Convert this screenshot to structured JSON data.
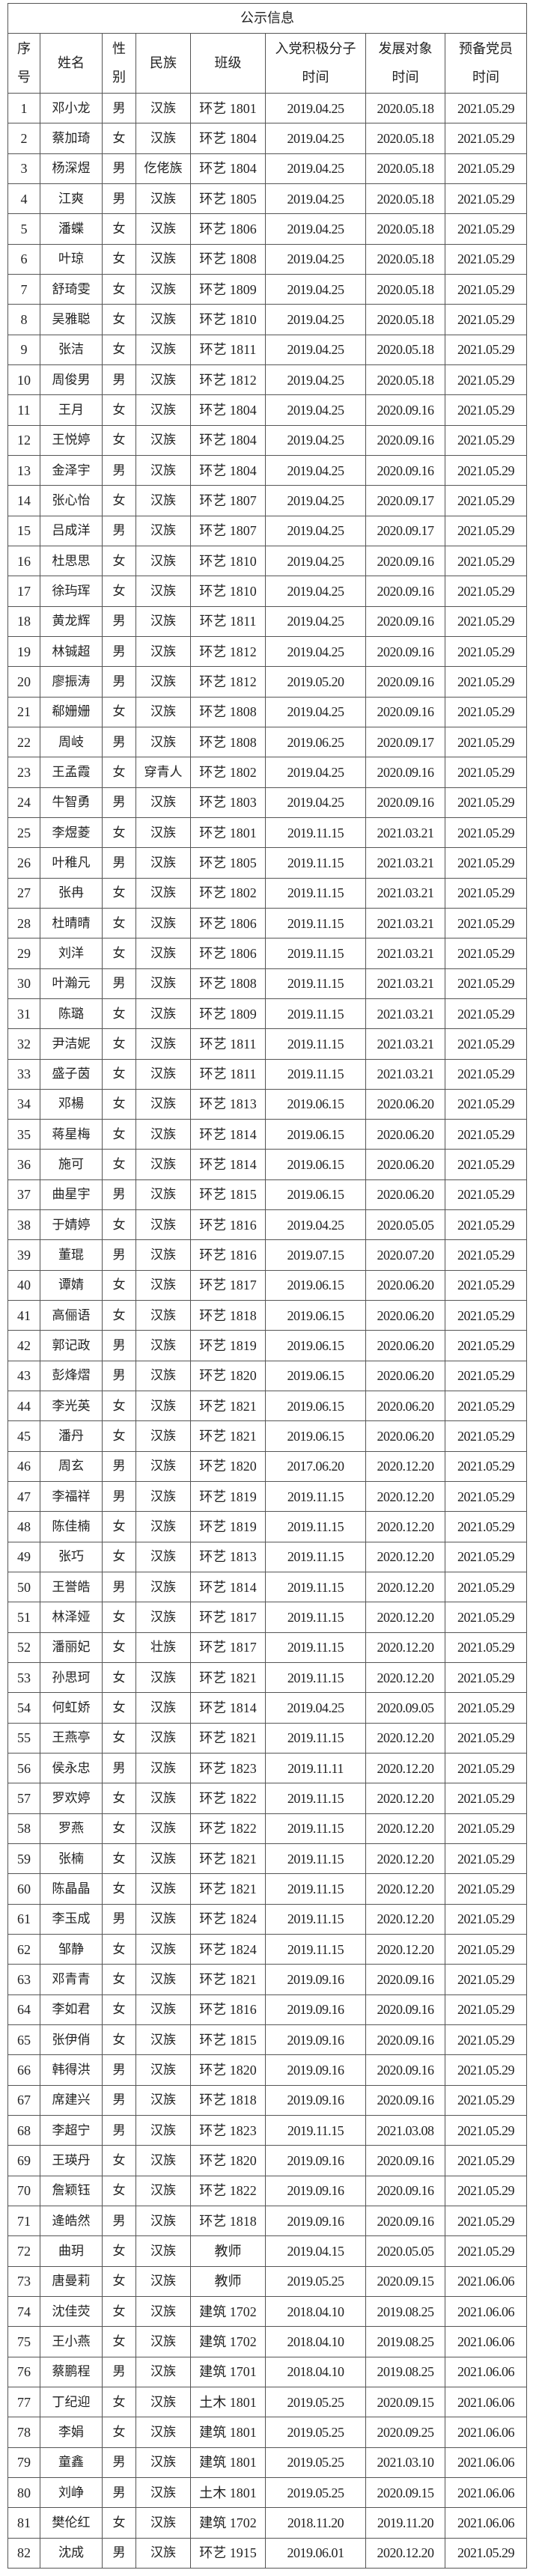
{
  "title": "公示信息",
  "headers": [
    "序\n号",
    "姓名",
    "性\n别",
    "民族",
    "班级",
    "入党积极分子\n时间",
    "发展对象\n时间",
    "预备党员\n时间"
  ],
  "rows": [
    [
      "1",
      "邓小龙",
      "男",
      "汉族",
      "环艺 1801",
      "2019.04.25",
      "2020.05.18",
      "2021.05.29"
    ],
    [
      "2",
      "蔡加琦",
      "女",
      "汉族",
      "环艺 1804",
      "2019.04.25",
      "2020.05.18",
      "2021.05.29"
    ],
    [
      "3",
      "杨深煜",
      "男",
      "仡佬族",
      "环艺 1804",
      "2019.04.25",
      "2020.05.18",
      "2021.05.29"
    ],
    [
      "4",
      "江爽",
      "男",
      "汉族",
      "环艺 1805",
      "2019.04.25",
      "2020.05.18",
      "2021.05.29"
    ],
    [
      "5",
      "潘蝶",
      "女",
      "汉族",
      "环艺 1806",
      "2019.04.25",
      "2020.05.18",
      "2021.05.29"
    ],
    [
      "6",
      "叶琼",
      "女",
      "汉族",
      "环艺 1808",
      "2019.04.25",
      "2020.05.18",
      "2021.05.29"
    ],
    [
      "7",
      "舒琦雯",
      "女",
      "汉族",
      "环艺 1809",
      "2019.04.25",
      "2020.05.18",
      "2021.05.29"
    ],
    [
      "8",
      "吴雅聪",
      "女",
      "汉族",
      "环艺 1810",
      "2019.04.25",
      "2020.05.18",
      "2021.05.29"
    ],
    [
      "9",
      "张洁",
      "女",
      "汉族",
      "环艺 1811",
      "2019.04.25",
      "2020.05.18",
      "2021.05.29"
    ],
    [
      "10",
      "周俊男",
      "男",
      "汉族",
      "环艺 1812",
      "2019.04.25",
      "2020.05.18",
      "2021.05.29"
    ],
    [
      "11",
      "王月",
      "女",
      "汉族",
      "环艺 1804",
      "2019.04.25",
      "2020.09.16",
      "2021.05.29"
    ],
    [
      "12",
      "王悦婷",
      "女",
      "汉族",
      "环艺 1804",
      "2019.04.25",
      "2020.09.16",
      "2021.05.29"
    ],
    [
      "13",
      "金泽宇",
      "男",
      "汉族",
      "环艺 1804",
      "2019.04.25",
      "2020.09.16",
      "2021.05.29"
    ],
    [
      "14",
      "张心怡",
      "女",
      "汉族",
      "环艺 1807",
      "2019.04.25",
      "2020.09.17",
      "2021.05.29"
    ],
    [
      "15",
      "吕成洋",
      "男",
      "汉族",
      "环艺 1807",
      "2019.04.25",
      "2020.09.17",
      "2021.05.29"
    ],
    [
      "16",
      "杜思思",
      "女",
      "汉族",
      "环艺 1810",
      "2019.04.25",
      "2020.09.16",
      "2021.05.29"
    ],
    [
      "17",
      "徐玙珲",
      "女",
      "汉族",
      "环艺 1810",
      "2019.04.25",
      "2020.09.16",
      "2021.05.29"
    ],
    [
      "18",
      "黄龙辉",
      "男",
      "汉族",
      "环艺 1811",
      "2019.04.25",
      "2020.09.16",
      "2021.05.29"
    ],
    [
      "19",
      "林铖超",
      "男",
      "汉族",
      "环艺 1812",
      "2019.04.25",
      "2020.09.16",
      "2021.05.29"
    ],
    [
      "20",
      "廖振涛",
      "男",
      "汉族",
      "环艺 1812",
      "2019.05.20",
      "2020.09.16",
      "2021.05.29"
    ],
    [
      "21",
      "郗姗姗",
      "女",
      "汉族",
      "环艺 1808",
      "2019.04.25",
      "2020.09.16",
      "2021.05.29"
    ],
    [
      "22",
      "周岐",
      "男",
      "汉族",
      "环艺 1808",
      "2019.06.25",
      "2020.09.17",
      "2021.05.29"
    ],
    [
      "23",
      "王孟霞",
      "女",
      "穿青人",
      "环艺 1802",
      "2019.04.25",
      "2020.09.16",
      "2021.05.29"
    ],
    [
      "24",
      "牛智勇",
      "男",
      "汉族",
      "环艺 1803",
      "2019.04.25",
      "2020.09.16",
      "2021.05.29"
    ],
    [
      "25",
      "李煜菱",
      "女",
      "汉族",
      "环艺 1801",
      "2019.11.15",
      "2021.03.21",
      "2021.05.29"
    ],
    [
      "26",
      "叶稚凡",
      "男",
      "汉族",
      "环艺 1805",
      "2019.11.15",
      "2021.03.21",
      "2021.05.29"
    ],
    [
      "27",
      "张冉",
      "女",
      "汉族",
      "环艺 1802",
      "2019.11.15",
      "2021.03.21",
      "2021.05.29"
    ],
    [
      "28",
      "杜晴晴",
      "女",
      "汉族",
      "环艺 1806",
      "2019.11.15",
      "2021.03.21",
      "2021.05.29"
    ],
    [
      "29",
      "刘洋",
      "女",
      "汉族",
      "环艺 1806",
      "2019.11.15",
      "2021.03.21",
      "2021.05.29"
    ],
    [
      "30",
      "叶瀚元",
      "男",
      "汉族",
      "环艺 1808",
      "2019.11.15",
      "2021.03.21",
      "2021.05.29"
    ],
    [
      "31",
      "陈璐",
      "女",
      "汉族",
      "环艺 1809",
      "2019.11.15",
      "2021.03.21",
      "2021.05.29"
    ],
    [
      "32",
      "尹洁妮",
      "女",
      "汉族",
      "环艺 1811",
      "2019.11.15",
      "2021.03.21",
      "2021.05.29"
    ],
    [
      "33",
      "盛子茵",
      "女",
      "汉族",
      "环艺 1811",
      "2019.11.15",
      "2021.03.21",
      "2021.05.29"
    ],
    [
      "34",
      "邓楊",
      "女",
      "汉族",
      "环艺 1813",
      "2019.06.15",
      "2020.06.20",
      "2021.05.29"
    ],
    [
      "35",
      "蒋星梅",
      "女",
      "汉族",
      "环艺 1814",
      "2019.06.15",
      "2020.06.20",
      "2021.05.29"
    ],
    [
      "36",
      "施可",
      "女",
      "汉族",
      "环艺 1814",
      "2019.06.15",
      "2020.06.20",
      "2021.05.29"
    ],
    [
      "37",
      "曲星宇",
      "男",
      "汉族",
      "环艺 1815",
      "2019.06.15",
      "2020.06.20",
      "2021.05.29"
    ],
    [
      "38",
      "于婧婷",
      "女",
      "汉族",
      "环艺 1816",
      "2019.04.25",
      "2020.05.05",
      "2021.05.29"
    ],
    [
      "39",
      "董琨",
      "男",
      "汉族",
      "环艺 1816",
      "2019.07.15",
      "2020.07.20",
      "2021.05.29"
    ],
    [
      "40",
      "谭婧",
      "女",
      "汉族",
      "环艺 1817",
      "2019.06.15",
      "2020.06.20",
      "2021.05.29"
    ],
    [
      "41",
      "高俪语",
      "女",
      "汉族",
      "环艺 1818",
      "2019.06.15",
      "2020.06.20",
      "2021.05.29"
    ],
    [
      "42",
      "郭记政",
      "男",
      "汉族",
      "环艺 1819",
      "2019.06.15",
      "2020.06.20",
      "2021.05.29"
    ],
    [
      "43",
      "彭烽熠",
      "男",
      "汉族",
      "环艺 1820",
      "2019.06.15",
      "2020.06.20",
      "2021.05.29"
    ],
    [
      "44",
      "李光英",
      "女",
      "汉族",
      "环艺 1821",
      "2019.06.15",
      "2020.06.20",
      "2021.05.29"
    ],
    [
      "45",
      "潘丹",
      "女",
      "汉族",
      "环艺 1821",
      "2019.06.15",
      "2020.06.20",
      "2021.05.29"
    ],
    [
      "46",
      "周玄",
      "男",
      "汉族",
      "环艺 1820",
      "2017.06.20",
      "2020.12.20",
      "2021.05.29"
    ],
    [
      "47",
      "李福祥",
      "男",
      "汉族",
      "环艺 1819",
      "2019.11.15",
      "2020.12.20",
      "2021.05.29"
    ],
    [
      "48",
      "陈佳楠",
      "女",
      "汉族",
      "环艺 1819",
      "2019.11.15",
      "2020.12.20",
      "2021.05.29"
    ],
    [
      "49",
      "张巧",
      "女",
      "汉族",
      "环艺 1813",
      "2019.11.15",
      "2020.12.20",
      "2021.05.29"
    ],
    [
      "50",
      "王誉皓",
      "男",
      "汉族",
      "环艺 1814",
      "2019.11.15",
      "2020.12.20",
      "2021.05.29"
    ],
    [
      "51",
      "林泽娅",
      "女",
      "汉族",
      "环艺 1817",
      "2019.11.15",
      "2020.12.20",
      "2021.05.29"
    ],
    [
      "52",
      "潘丽妃",
      "女",
      "壮族",
      "环艺 1817",
      "2019.11.15",
      "2020.12.20",
      "2021.05.29"
    ],
    [
      "53",
      "孙思珂",
      "女",
      "汉族",
      "环艺 1821",
      "2019.11.15",
      "2020.12.20",
      "2021.05.29"
    ],
    [
      "54",
      "何虹娇",
      "女",
      "汉族",
      "环艺 1814",
      "2019.04.25",
      "2020.09.05",
      "2021.05.29"
    ],
    [
      "55",
      "王燕亭",
      "女",
      "汉族",
      "环艺 1821",
      "2019.11.15",
      "2020.12.20",
      "2021.05.29"
    ],
    [
      "56",
      "侯永忠",
      "男",
      "汉族",
      "环艺 1823",
      "2019.11.11",
      "2020.12.20",
      "2021.05.29"
    ],
    [
      "57",
      "罗欢婷",
      "女",
      "汉族",
      "环艺 1822",
      "2019.11.15",
      "2020.12.20",
      "2021.05.29"
    ],
    [
      "58",
      "罗燕",
      "女",
      "汉族",
      "环艺 1822",
      "2019.11.15",
      "2020.12.20",
      "2021.05.29"
    ],
    [
      "59",
      "张楠",
      "女",
      "汉族",
      "环艺 1821",
      "2019.11.15",
      "2020.12.20",
      "2021.05.29"
    ],
    [
      "60",
      "陈晶晶",
      "女",
      "汉族",
      "环艺 1821",
      "2019.11.15",
      "2020.12.20",
      "2021.05.29"
    ],
    [
      "61",
      "李玉成",
      "男",
      "汉族",
      "环艺 1824",
      "2019.11.15",
      "2020.12.20",
      "2021.05.29"
    ],
    [
      "62",
      "邹静",
      "女",
      "汉族",
      "环艺 1824",
      "2019.11.15",
      "2020.12.20",
      "2021.05.29"
    ],
    [
      "63",
      "邓青青",
      "女",
      "汉族",
      "环艺 1821",
      "2019.09.16",
      "2020.09.16",
      "2021.05.29"
    ],
    [
      "64",
      "李如君",
      "女",
      "汉族",
      "环艺 1816",
      "2019.09.16",
      "2020.09.16",
      "2021.05.29"
    ],
    [
      "65",
      "张伊俏",
      "女",
      "汉族",
      "环艺 1815",
      "2019.09.16",
      "2020.09.16",
      "2021.05.29"
    ],
    [
      "66",
      "韩得洪",
      "男",
      "汉族",
      "环艺 1820",
      "2019.09.16",
      "2020.09.16",
      "2021.05.29"
    ],
    [
      "67",
      "席建兴",
      "男",
      "汉族",
      "环艺 1818",
      "2019.09.16",
      "2020.09.16",
      "2021.05.29"
    ],
    [
      "68",
      "李超宁",
      "男",
      "汉族",
      "环艺 1823",
      "2019.11.15",
      "2021.03.08",
      "2021.05.29"
    ],
    [
      "69",
      "王瑛丹",
      "女",
      "汉族",
      "环艺 1820",
      "2019.09.16",
      "2020.09.16",
      "2021.05.29"
    ],
    [
      "70",
      "詹颖钰",
      "女",
      "汉族",
      "环艺 1822",
      "2019.09.16",
      "2020.09.16",
      "2021.05.29"
    ],
    [
      "71",
      "逄皓然",
      "男",
      "汉族",
      "环艺 1818",
      "2019.09.16",
      "2020.09.16",
      "2021.05.29"
    ],
    [
      "72",
      "曲玥",
      "女",
      "汉族",
      "教师",
      "2019.04.15",
      "2020.05.05",
      "2021.05.29"
    ],
    [
      "73",
      "唐曼莉",
      "女",
      "汉族",
      "教师",
      "2019.05.25",
      "2020.09.15",
      "2021.06.06"
    ],
    [
      "74",
      "沈佳荧",
      "女",
      "汉族",
      "建筑 1702",
      "2018.04.10",
      "2019.08.25",
      "2021.06.06"
    ],
    [
      "75",
      "王小燕",
      "女",
      "汉族",
      "建筑 1702",
      "2018.04.10",
      "2019.08.25",
      "2021.06.06"
    ],
    [
      "76",
      "蔡鹏程",
      "男",
      "汉族",
      "建筑 1701",
      "2018.04.10",
      "2019.08.25",
      "2021.06.06"
    ],
    [
      "77",
      "丁纪迎",
      "女",
      "汉族",
      "土木 1801",
      "2019.05.25",
      "2020.09.15",
      "2021.06.06"
    ],
    [
      "78",
      "李娟",
      "女",
      "汉族",
      "建筑 1801",
      "2019.05.25",
      "2020.09.25",
      "2021.06.06"
    ],
    [
      "79",
      "童鑫",
      "男",
      "汉族",
      "建筑 1801",
      "2019.05.25",
      "2021.03.10",
      "2021.06.06"
    ],
    [
      "80",
      "刘峥",
      "男",
      "汉族",
      "土木 1801",
      "2019.05.25",
      "2020.09.15",
      "2021.06.06"
    ],
    [
      "81",
      "樊伦红",
      "女",
      "汉族",
      "建筑 1702",
      "2018.11.20",
      "2019.11.20",
      "2021.06.06"
    ],
    [
      "82",
      "沈成",
      "男",
      "汉族",
      "环艺 1915",
      "2019.06.01",
      "2020.12.20",
      "2021.05.29"
    ]
  ]
}
